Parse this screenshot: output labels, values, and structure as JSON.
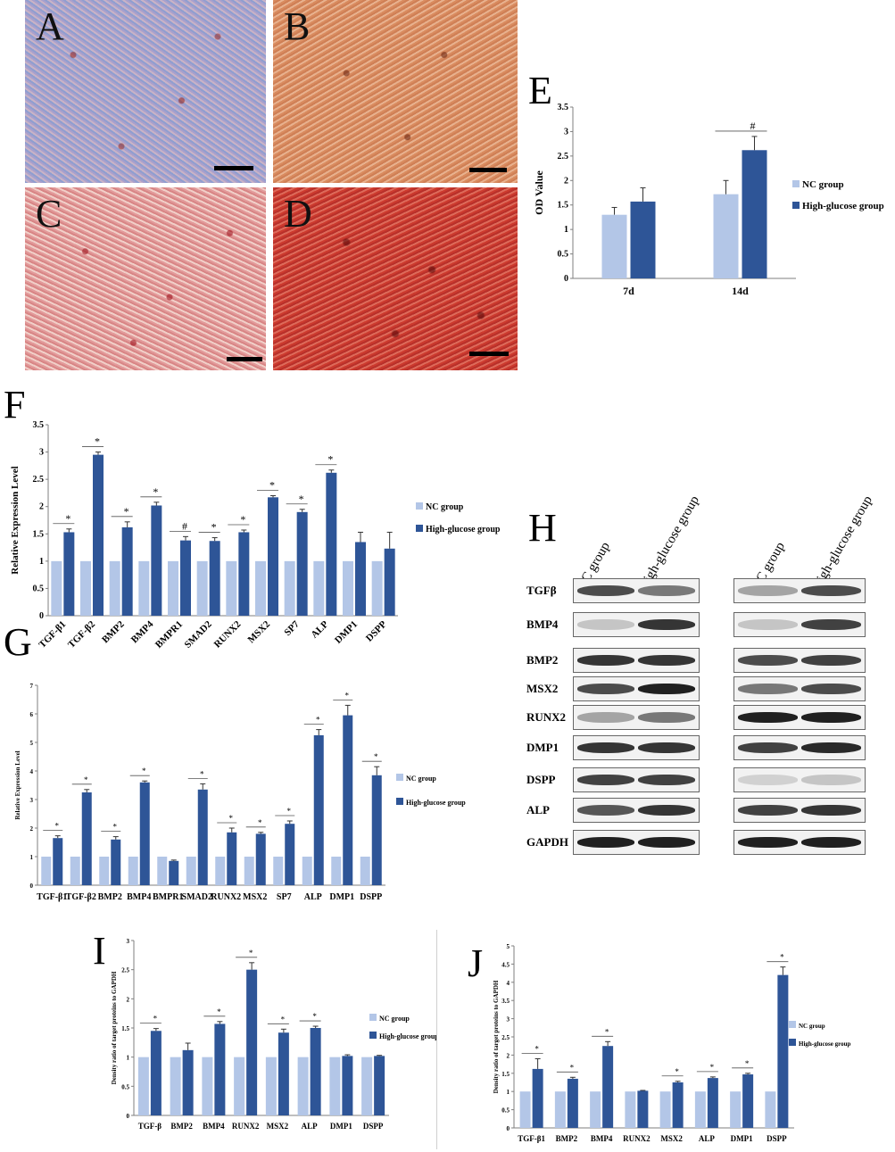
{
  "colors": {
    "nc": "#b3c6e7",
    "hg": "#2e5597",
    "axis": "#7f7f7f"
  },
  "photos": [
    {
      "letter": "A",
      "tone": "blue"
    },
    {
      "letter": "B",
      "tone": "orange"
    },
    {
      "letter": "C",
      "tone": "pink"
    },
    {
      "letter": "D",
      "tone": "red"
    }
  ],
  "blot": {
    "letter": "H",
    "columns": [
      "NC group",
      "High-glucose group"
    ],
    "rows": [
      "TGFβ",
      "BMP4",
      "BMP2",
      "MSX2",
      "RUNX2",
      "DMP1",
      "DSPP",
      "ALP",
      "GAPDH"
    ]
  },
  "chart_data": [
    {
      "id": "E",
      "letter": "E",
      "type": "bar",
      "categories": [
        "7d",
        "14d"
      ],
      "series": [
        {
          "name": "NC group",
          "values": [
            1.3,
            1.72
          ],
          "errors": [
            0.15,
            0.28
          ]
        },
        {
          "name": "High-glucose group",
          "values": [
            1.57,
            2.62
          ],
          "errors": [
            0.28,
            0.28
          ]
        }
      ],
      "ylabel": "OD Value",
      "ylim": [
        0,
        3.5
      ],
      "yticks": [
        "0",
        "0.5",
        "1",
        "1.5",
        "2",
        "2.5",
        "3",
        "3.5"
      ],
      "marks": [
        "",
        "#"
      ],
      "legend": "right"
    },
    {
      "id": "F",
      "letter": "F",
      "type": "bar",
      "categories": [
        "TGF-β1",
        "TGF-β2",
        "BMP2",
        "BMP4",
        "BMPR1",
        "SMAD2",
        "RUNX2",
        "MSX2",
        "SP7",
        "ALP",
        "DMP1",
        "DSPP"
      ],
      "series": [
        {
          "name": "NC group",
          "values": [
            1,
            1,
            1,
            1,
            1,
            1,
            1,
            1,
            1,
            1,
            1,
            1
          ],
          "errors": [
            0,
            0,
            0,
            0,
            0,
            0,
            0,
            0,
            0,
            0,
            0,
            0
          ]
        },
        {
          "name": "High-glucose group",
          "values": [
            1.53,
            2.95,
            1.62,
            2.02,
            1.38,
            1.37,
            1.53,
            2.17,
            1.9,
            2.62,
            1.35,
            1.23
          ],
          "errors": [
            0.06,
            0.05,
            0.1,
            0.06,
            0.07,
            0.06,
            0.04,
            0.03,
            0.05,
            0.05,
            0.18,
            0.3
          ]
        }
      ],
      "ylabel": "Relative Expression Level",
      "ylim": [
        0,
        3.5
      ],
      "yticks": [
        "0",
        "0.5",
        "1",
        "1.5",
        "2",
        "2.5",
        "3",
        "3.5"
      ],
      "marks": [
        "*",
        "*",
        "*",
        "*",
        "#",
        "*",
        "*",
        "*",
        "*",
        "*",
        "",
        ""
      ],
      "legend": "right"
    },
    {
      "id": "G",
      "letter": "G",
      "type": "bar",
      "categories": [
        "TGF-β1",
        "TGF-β2",
        "BMP2",
        "BMP4",
        "BMPR1",
        "SMAD2",
        "RUNX2",
        "MSX2",
        "SP7",
        "ALP",
        "DMP1",
        "DSPP"
      ],
      "series": [
        {
          "name": "NC group",
          "values": [
            1,
            1,
            1,
            1,
            1,
            1,
            1,
            1,
            1,
            1,
            1,
            1
          ],
          "errors": [
            0,
            0,
            0,
            0,
            0,
            0,
            0,
            0,
            0,
            0,
            0,
            0
          ]
        },
        {
          "name": "High-glucose group",
          "values": [
            1.65,
            3.25,
            1.6,
            3.6,
            0.85,
            3.35,
            1.85,
            1.8,
            2.15,
            5.25,
            5.95,
            3.85
          ],
          "errors": [
            0.08,
            0.1,
            0.1,
            0.05,
            0.03,
            0.2,
            0.15,
            0.05,
            0.1,
            0.2,
            0.35,
            0.3
          ]
        }
      ],
      "ylabel": "Relative Expression Level",
      "ylim": [
        0,
        7
      ],
      "yticks": [
        "0",
        "1",
        "2",
        "3",
        "4",
        "5",
        "6",
        "7"
      ],
      "marks": [
        "*",
        "*",
        "*",
        "*",
        "",
        "*",
        "*",
        "*",
        "*",
        "*",
        "*",
        "*"
      ],
      "legend": "right"
    },
    {
      "id": "I",
      "letter": "I",
      "type": "bar",
      "categories": [
        "TGF-β",
        "BMP2",
        "BMP4",
        "RUNX2",
        "MSX2",
        "ALP",
        "DMP1",
        "DSPP"
      ],
      "series": [
        {
          "name": "NC group",
          "values": [
            1,
            1,
            1,
            1,
            1,
            1,
            1,
            1
          ],
          "errors": [
            0,
            0,
            0,
            0,
            0,
            0,
            0,
            0
          ]
        },
        {
          "name": "High-glucose group",
          "values": [
            1.45,
            1.12,
            1.57,
            2.5,
            1.42,
            1.5,
            1.02,
            1.02
          ],
          "errors": [
            0.04,
            0.12,
            0.04,
            0.12,
            0.06,
            0.03,
            0.02,
            0.01
          ]
        }
      ],
      "ylabel": "Density ratio of target proteins to GAPDH",
      "ylim": [
        0,
        3
      ],
      "yticks": [
        "0",
        "0.5",
        "1",
        "1.5",
        "2",
        "2.5",
        "3"
      ],
      "marks": [
        "*",
        "",
        "*",
        "*",
        "*",
        "*",
        "",
        ""
      ],
      "legend": "right"
    },
    {
      "id": "J",
      "letter": "J",
      "type": "bar",
      "categories": [
        "TGF-β1",
        "BMP2",
        "BMP4",
        "RUNX2",
        "MSX2",
        "ALP",
        "DMP1",
        "DSPP"
      ],
      "series": [
        {
          "name": "NC group",
          "values": [
            1,
            1,
            1,
            1,
            1,
            1,
            1,
            1
          ],
          "errors": [
            0,
            0,
            0,
            0,
            0,
            0,
            0,
            0
          ]
        },
        {
          "name": "High-glucose group",
          "values": [
            1.62,
            1.35,
            2.25,
            1.02,
            1.25,
            1.37,
            1.47,
            4.2
          ],
          "errors": [
            0.28,
            0.04,
            0.12,
            0.01,
            0.03,
            0.03,
            0.03,
            0.22
          ]
        }
      ],
      "ylabel": "Density ratio of target proteins to GAPDH",
      "ylim": [
        0,
        5
      ],
      "yticks": [
        "0",
        "0.5",
        "1",
        "1.5",
        "2",
        "2.5",
        "3",
        "3.5",
        "4",
        "4.5",
        "5"
      ],
      "marks": [
        "*",
        "*",
        "*",
        "",
        "*",
        "*",
        "*",
        "*"
      ],
      "legend": "right"
    }
  ]
}
